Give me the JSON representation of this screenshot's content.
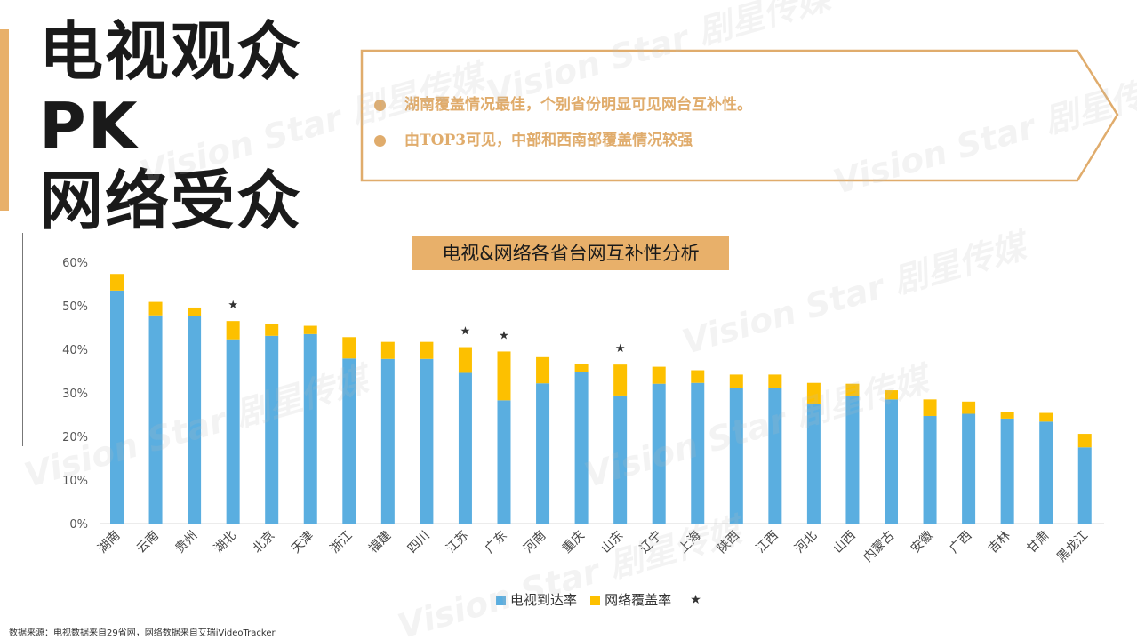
{
  "headline": {
    "line1": "电视观众",
    "line2": "PK",
    "line3": "网络受众"
  },
  "callout": {
    "points": [
      "湖南覆盖情况最佳，个别省份明显可见网台互补性。",
      "由TOP3可见，中部和西南部覆盖情况较强"
    ]
  },
  "chart_title": "电视&网络各省台网互补性分析",
  "legend": {
    "tv": "电视到达率",
    "web": "网络覆盖率",
    "star": "★"
  },
  "source": "数据来源：电视数据来自29省网，网络数据来自艾瑞iVideoTracker",
  "watermark": "Vision Star 剧星传媒",
  "colors": {
    "tv": "#5aaee0",
    "web": "#fdc000",
    "accent": "#e8b06a"
  },
  "chart_data": {
    "type": "bar",
    "stacked": true,
    "title": "电视&网络各省台网互补性分析",
    "categories": [
      "湖南",
      "云南",
      "贵州",
      "湖北",
      "北京",
      "天津",
      "浙江",
      "福建",
      "四川",
      "江苏",
      "广东",
      "河南",
      "重庆",
      "山东",
      "辽宁",
      "上海",
      "陕西",
      "江西",
      "河北",
      "山西",
      "内蒙古",
      "安徽",
      "广西",
      "吉林",
      "甘肃",
      "黑龙江"
    ],
    "series": [
      {
        "name": "电视到达率",
        "values": [
          53.5,
          47.8,
          47.6,
          42.3,
          43.1,
          43.5,
          37.9,
          37.8,
          37.8,
          34.6,
          28.3,
          32.2,
          34.8,
          29.4,
          32.1,
          32.3,
          31.1,
          31.1,
          27.4,
          29.2,
          28.5,
          24.7,
          25.2,
          24.1,
          23.4,
          17.5
        ]
      },
      {
        "name": "网络覆盖率",
        "values": [
          3.8,
          3.1,
          2.0,
          4.2,
          2.7,
          1.9,
          4.9,
          3.9,
          3.9,
          5.9,
          11.2,
          6.0,
          1.9,
          7.1,
          3.9,
          2.9,
          3.1,
          3.1,
          4.9,
          2.9,
          2.1,
          3.8,
          2.8,
          1.6,
          2.0,
          3.1
        ]
      }
    ],
    "starred": [
      "湖北",
      "江苏",
      "广东",
      "山东"
    ],
    "y_ticks": [
      "0%",
      "10%",
      "20%",
      "30%",
      "40%",
      "50%",
      "60%"
    ],
    "ylim": [
      0,
      60
    ],
    "grid": false
  }
}
